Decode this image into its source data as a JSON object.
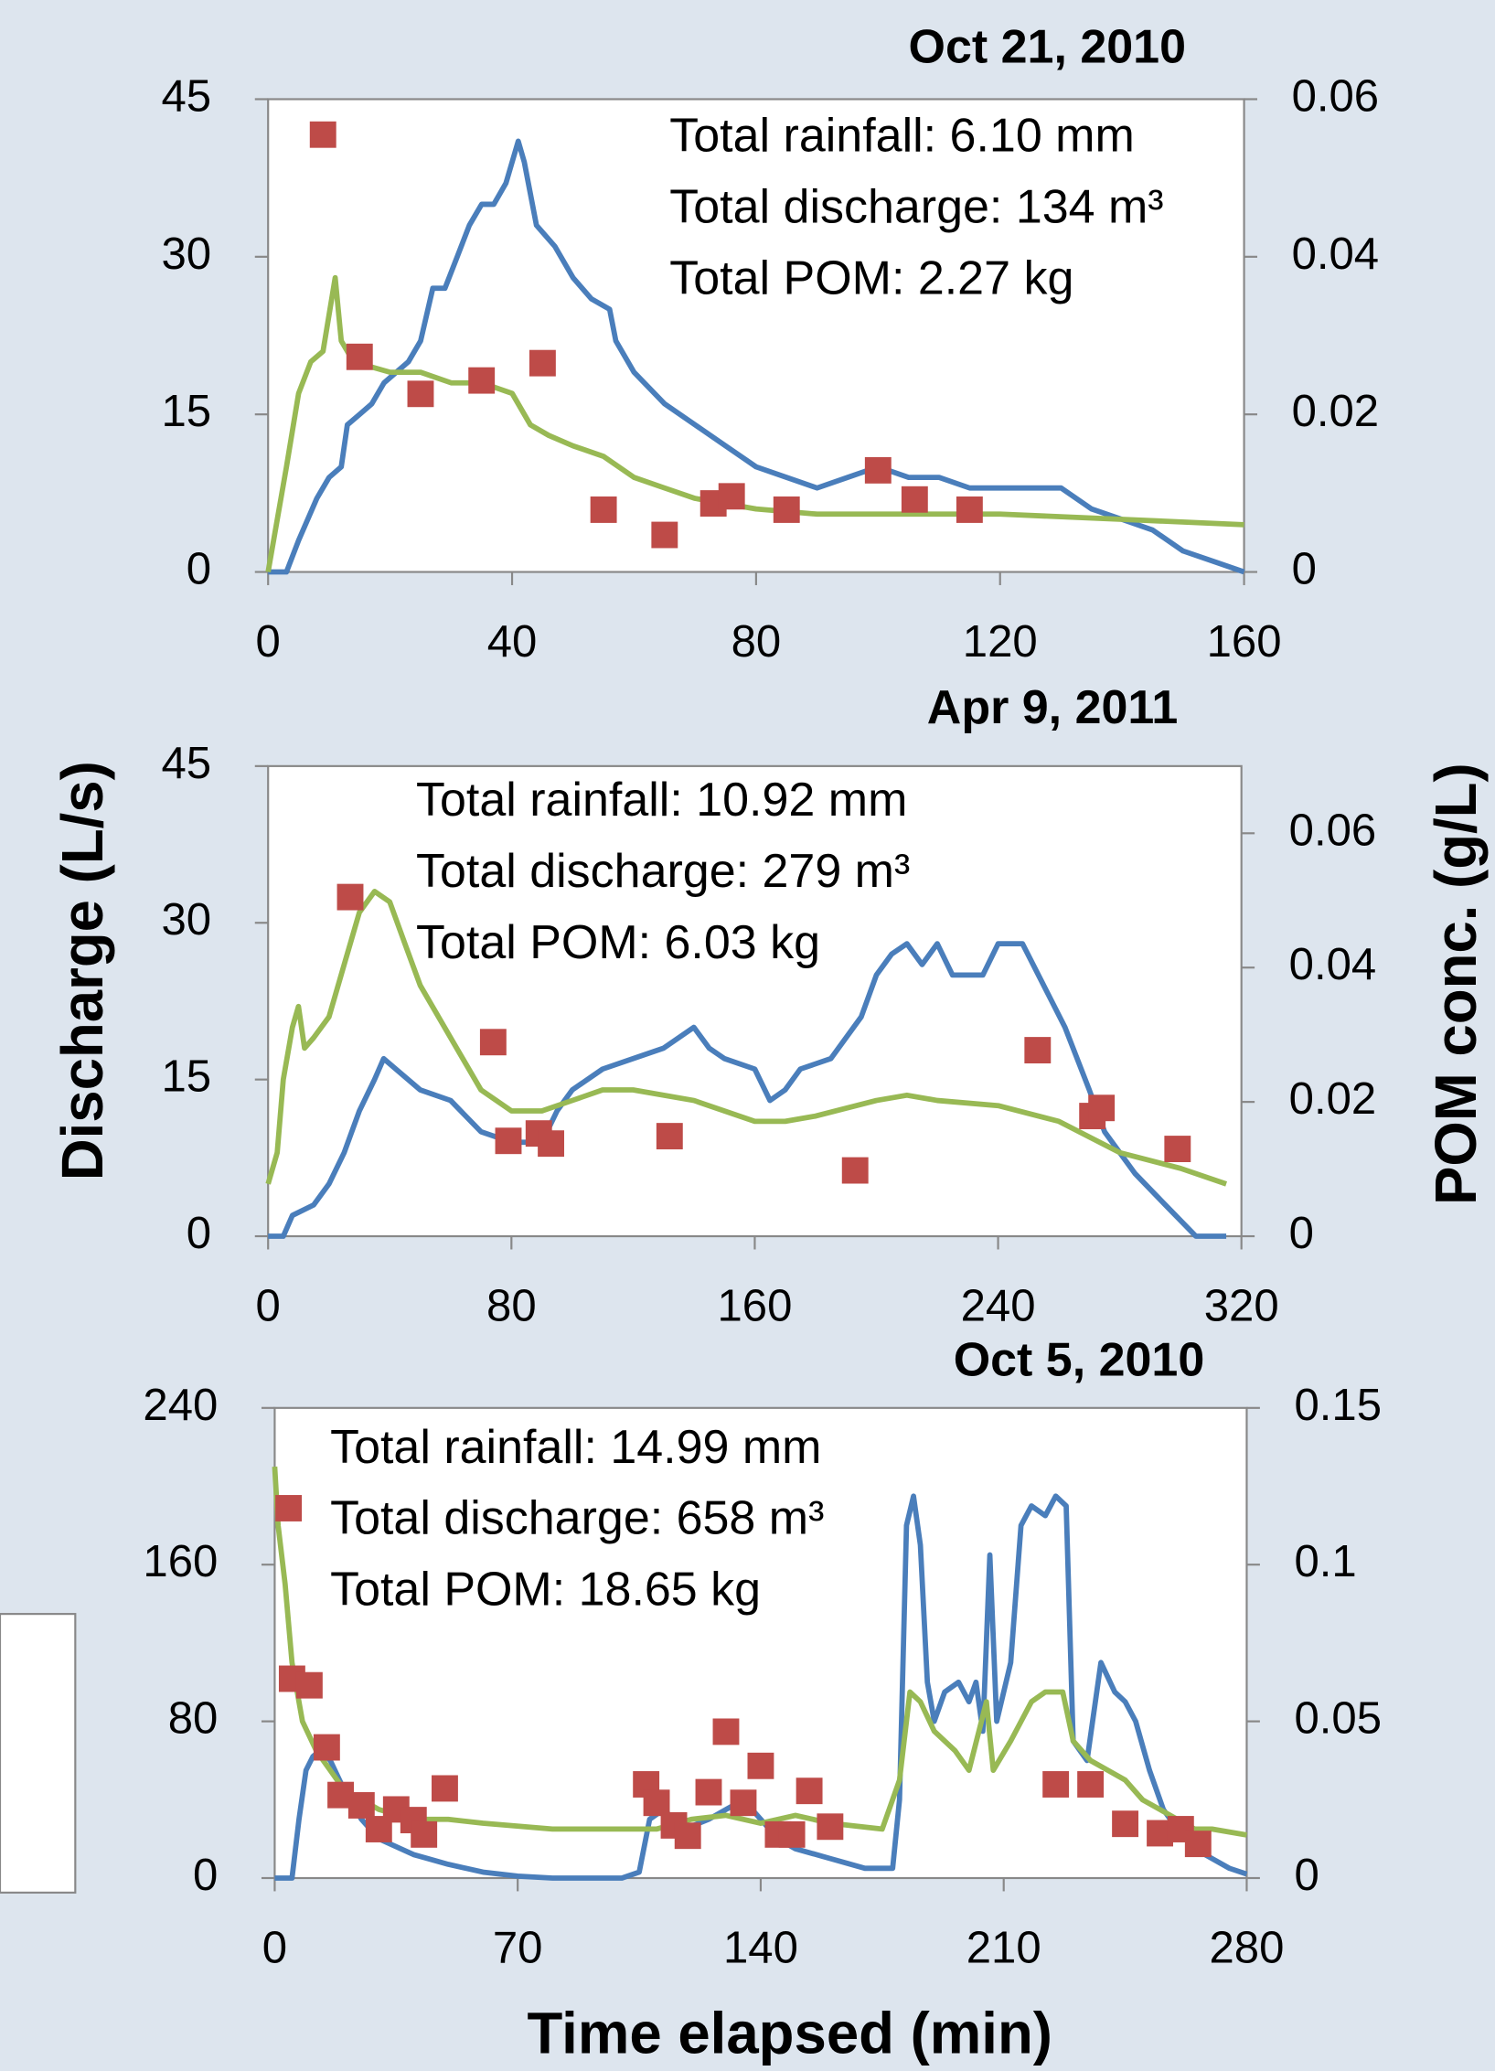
{
  "chart_data": [
    {
      "type": "line",
      "title": "Oct 21, 2010",
      "annotations": [
        "Total rainfall: 6.10 mm",
        "Total discharge: 134 m³",
        "Total POM: 2.27 kg"
      ],
      "xlim": [
        0,
        160
      ],
      "xticks": [
        0,
        40,
        80,
        120,
        160
      ],
      "ylim": [
        0,
        45
      ],
      "yticks": [
        0,
        15,
        30,
        45
      ],
      "y2lim": [
        0,
        0.06
      ],
      "y2ticks": [
        0,
        0.02,
        0.04,
        0.06
      ],
      "series": [
        {
          "color": "#4a7ebb",
          "x": [
            0,
            3,
            5,
            8,
            10,
            12,
            13,
            15,
            17,
            19,
            21,
            23,
            25,
            27,
            29,
            31,
            33,
            35,
            37,
            39,
            41,
            42,
            44,
            47,
            50,
            53,
            56,
            57,
            60,
            65,
            70,
            75,
            80,
            85,
            90,
            95,
            100,
            105,
            110,
            115,
            120,
            125,
            130,
            135,
            140,
            145,
            150,
            155,
            160
          ],
          "values": [
            0,
            0,
            3,
            7,
            9,
            10,
            14,
            15,
            16,
            18,
            19,
            20,
            22,
            27,
            27,
            30,
            33,
            35,
            35,
            37,
            41,
            39,
            33,
            31,
            28,
            26,
            25,
            22,
            19,
            16,
            14,
            12,
            10,
            9,
            8,
            9,
            10,
            9,
            9,
            8,
            8,
            8,
            8,
            6,
            5,
            4,
            2,
            1,
            0
          ]
        },
        {
          "color": "#98b954",
          "x": [
            0,
            3,
            5,
            7,
            9,
            11,
            12,
            14,
            20,
            25,
            30,
            35,
            40,
            43,
            46,
            50,
            55,
            60,
            65,
            70,
            80,
            90,
            100,
            120,
            140,
            160
          ],
          "values": [
            0,
            10,
            17,
            20,
            21,
            28,
            22,
            20,
            19,
            19,
            18,
            18,
            17,
            14,
            13,
            12,
            11,
            9,
            8,
            7,
            6,
            5.5,
            5.5,
            5.5,
            5,
            4.5
          ]
        },
        {
          "color": "#be4b48",
          "type": "scatter",
          "axis": "y2",
          "x": [
            9,
            15,
            25,
            35,
            45,
            55,
            65,
            73,
            76,
            85,
            100,
            106,
            115
          ],
          "values": [
            0.0555,
            0.0273,
            0.0226,
            0.0243,
            0.0265,
            0.0079,
            0.0047,
            0.0087,
            0.0096,
            0.0079,
            0.0129,
            0.0092,
            0.0079
          ]
        }
      ]
    },
    {
      "type": "line",
      "title": "Apr 9, 2011",
      "annotations": [
        "Total rainfall: 10.92 mm",
        "Total discharge: 279 m³",
        "Total POM: 6.03 kg"
      ],
      "xlim": [
        0,
        320
      ],
      "xticks": [
        0,
        80,
        160,
        240,
        320
      ],
      "ylim": [
        0,
        45
      ],
      "yticks": [
        0,
        15,
        30,
        45
      ],
      "y2lim": [
        0,
        0.07
      ],
      "y2ticks": [
        0,
        0.02,
        0.04,
        0.06
      ],
      "series": [
        {
          "color": "#4a7ebb",
          "x": [
            0,
            5,
            8,
            15,
            20,
            25,
            30,
            35,
            38,
            42,
            50,
            60,
            70,
            80,
            90,
            95,
            100,
            110,
            120,
            130,
            140,
            145,
            150,
            160,
            165,
            170,
            175,
            185,
            195,
            200,
            205,
            210,
            215,
            220,
            225,
            235,
            240,
            248,
            255,
            262,
            270,
            275,
            285,
            295,
            305,
            315
          ],
          "values": [
            0,
            0,
            2,
            3,
            5,
            8,
            12,
            15,
            17,
            16,
            14,
            13,
            10,
            9,
            9,
            12,
            14,
            16,
            17,
            18,
            20,
            18,
            17,
            16,
            13,
            14,
            16,
            17,
            21,
            25,
            27,
            28,
            26,
            28,
            25,
            25,
            28,
            28,
            24,
            20,
            14,
            10,
            6,
            3,
            0,
            0
          ]
        },
        {
          "color": "#98b954",
          "x": [
            0,
            3,
            5,
            8,
            10,
            12,
            15,
            20,
            25,
            30,
            35,
            40,
            45,
            50,
            60,
            70,
            80,
            90,
            100,
            110,
            120,
            140,
            160,
            170,
            180,
            200,
            210,
            220,
            240,
            260,
            280,
            300,
            315
          ],
          "values": [
            5,
            8,
            15,
            20,
            22,
            18,
            19,
            21,
            26,
            31,
            33,
            32,
            28,
            24,
            19,
            14,
            12,
            12,
            13,
            14,
            14,
            13,
            11,
            11,
            11.5,
            13,
            13.5,
            13,
            12.5,
            11,
            8,
            6.5,
            5
          ]
        },
        {
          "color": "#be4b48",
          "type": "scatter",
          "axis": "y2",
          "x": [
            27,
            74,
            79,
            89,
            93,
            132,
            193,
            253,
            271,
            274,
            299
          ],
          "values": [
            0.0505,
            0.0289,
            0.0142,
            0.0153,
            0.0138,
            0.0149,
            0.0098,
            0.0277,
            0.0179,
            0.0191,
            0.013
          ]
        }
      ]
    },
    {
      "type": "line",
      "title": "Oct 5, 2010",
      "annotations": [
        "Total rainfall: 14.99 mm",
        "Total discharge: 658 m³",
        "Total POM: 18.65 kg"
      ],
      "xlim": [
        0,
        280
      ],
      "xticks": [
        0,
        70,
        140,
        210,
        280
      ],
      "ylim": [
        0,
        240
      ],
      "yticks": [
        0,
        80,
        160,
        240
      ],
      "y2lim": [
        0,
        0.15
      ],
      "y2ticks": [
        0,
        0.05,
        0.1,
        0.15
      ],
      "series": [
        {
          "color": "#4a7ebb",
          "x": [
            0,
            5,
            7,
            9,
            11,
            13,
            16,
            20,
            25,
            30,
            40,
            50,
            60,
            70,
            80,
            100,
            105,
            108,
            112,
            118,
            125,
            130,
            135,
            140,
            145,
            150,
            160,
            170,
            178,
            180,
            182,
            184,
            186,
            188,
            190,
            193,
            197,
            200,
            202,
            204,
            206,
            208,
            212,
            215,
            218,
            222,
            225,
            228,
            230,
            234,
            238,
            242,
            245,
            248,
            252,
            256,
            260,
            265,
            270,
            275,
            280
          ],
          "values": [
            0,
            0,
            30,
            55,
            62,
            65,
            60,
            45,
            30,
            20,
            12,
            7,
            3,
            1,
            0,
            0,
            3,
            30,
            35,
            25,
            30,
            35,
            40,
            30,
            20,
            15,
            10,
            5,
            5,
            40,
            180,
            195,
            170,
            100,
            80,
            95,
            100,
            90,
            100,
            75,
            165,
            80,
            110,
            180,
            190,
            185,
            195,
            190,
            70,
            60,
            110,
            95,
            90,
            80,
            55,
            35,
            25,
            15,
            10,
            5,
            2
          ]
        },
        {
          "color": "#98b954",
          "x": [
            0,
            1,
            3,
            5,
            8,
            12,
            16,
            20,
            30,
            40,
            50,
            60,
            80,
            100,
            110,
            120,
            130,
            140,
            150,
            160,
            175,
            180,
            183,
            186,
            190,
            196,
            200,
            205,
            207,
            212,
            218,
            222,
            227,
            230,
            235,
            240,
            245,
            250,
            255,
            260,
            265,
            270,
            280
          ],
          "values": [
            210,
            180,
            150,
            110,
            80,
            65,
            55,
            45,
            35,
            30,
            30,
            28,
            25,
            25,
            25,
            30,
            32,
            28,
            32,
            28,
            25,
            50,
            95,
            90,
            75,
            65,
            55,
            90,
            55,
            70,
            90,
            95,
            95,
            70,
            60,
            55,
            50,
            40,
            35,
            30,
            25,
            25,
            22
          ]
        },
        {
          "color": "#be4b48",
          "type": "scatter",
          "axis": "y2",
          "x": [
            4,
            5,
            10,
            15,
            19,
            25,
            30,
            35,
            40,
            43,
            49,
            107,
            110,
            115,
            119,
            125,
            130,
            135,
            140,
            145,
            149,
            154,
            160,
            225,
            235,
            245,
            255,
            261,
            266
          ],
          "values": [
            0.118,
            0.0636,
            0.0615,
            0.0417,
            0.0265,
            0.0232,
            0.0156,
            0.0219,
            0.0185,
            0.0139,
            0.0286,
            0.0299,
            0.024,
            0.0168,
            0.0135,
            0.0274,
            0.0467,
            0.024,
            0.0358,
            0.0139,
            0.0139,
            0.0278,
            0.0164,
            0.0299,
            0.0299,
            0.0173,
            0.0143,
            0.0156,
            0.0109
          ]
        }
      ]
    }
  ],
  "ylabel": "Discharge (L/s)",
  "y2label": "POM conc. (g/L)",
  "xlabel": "Time elapsed (min)"
}
